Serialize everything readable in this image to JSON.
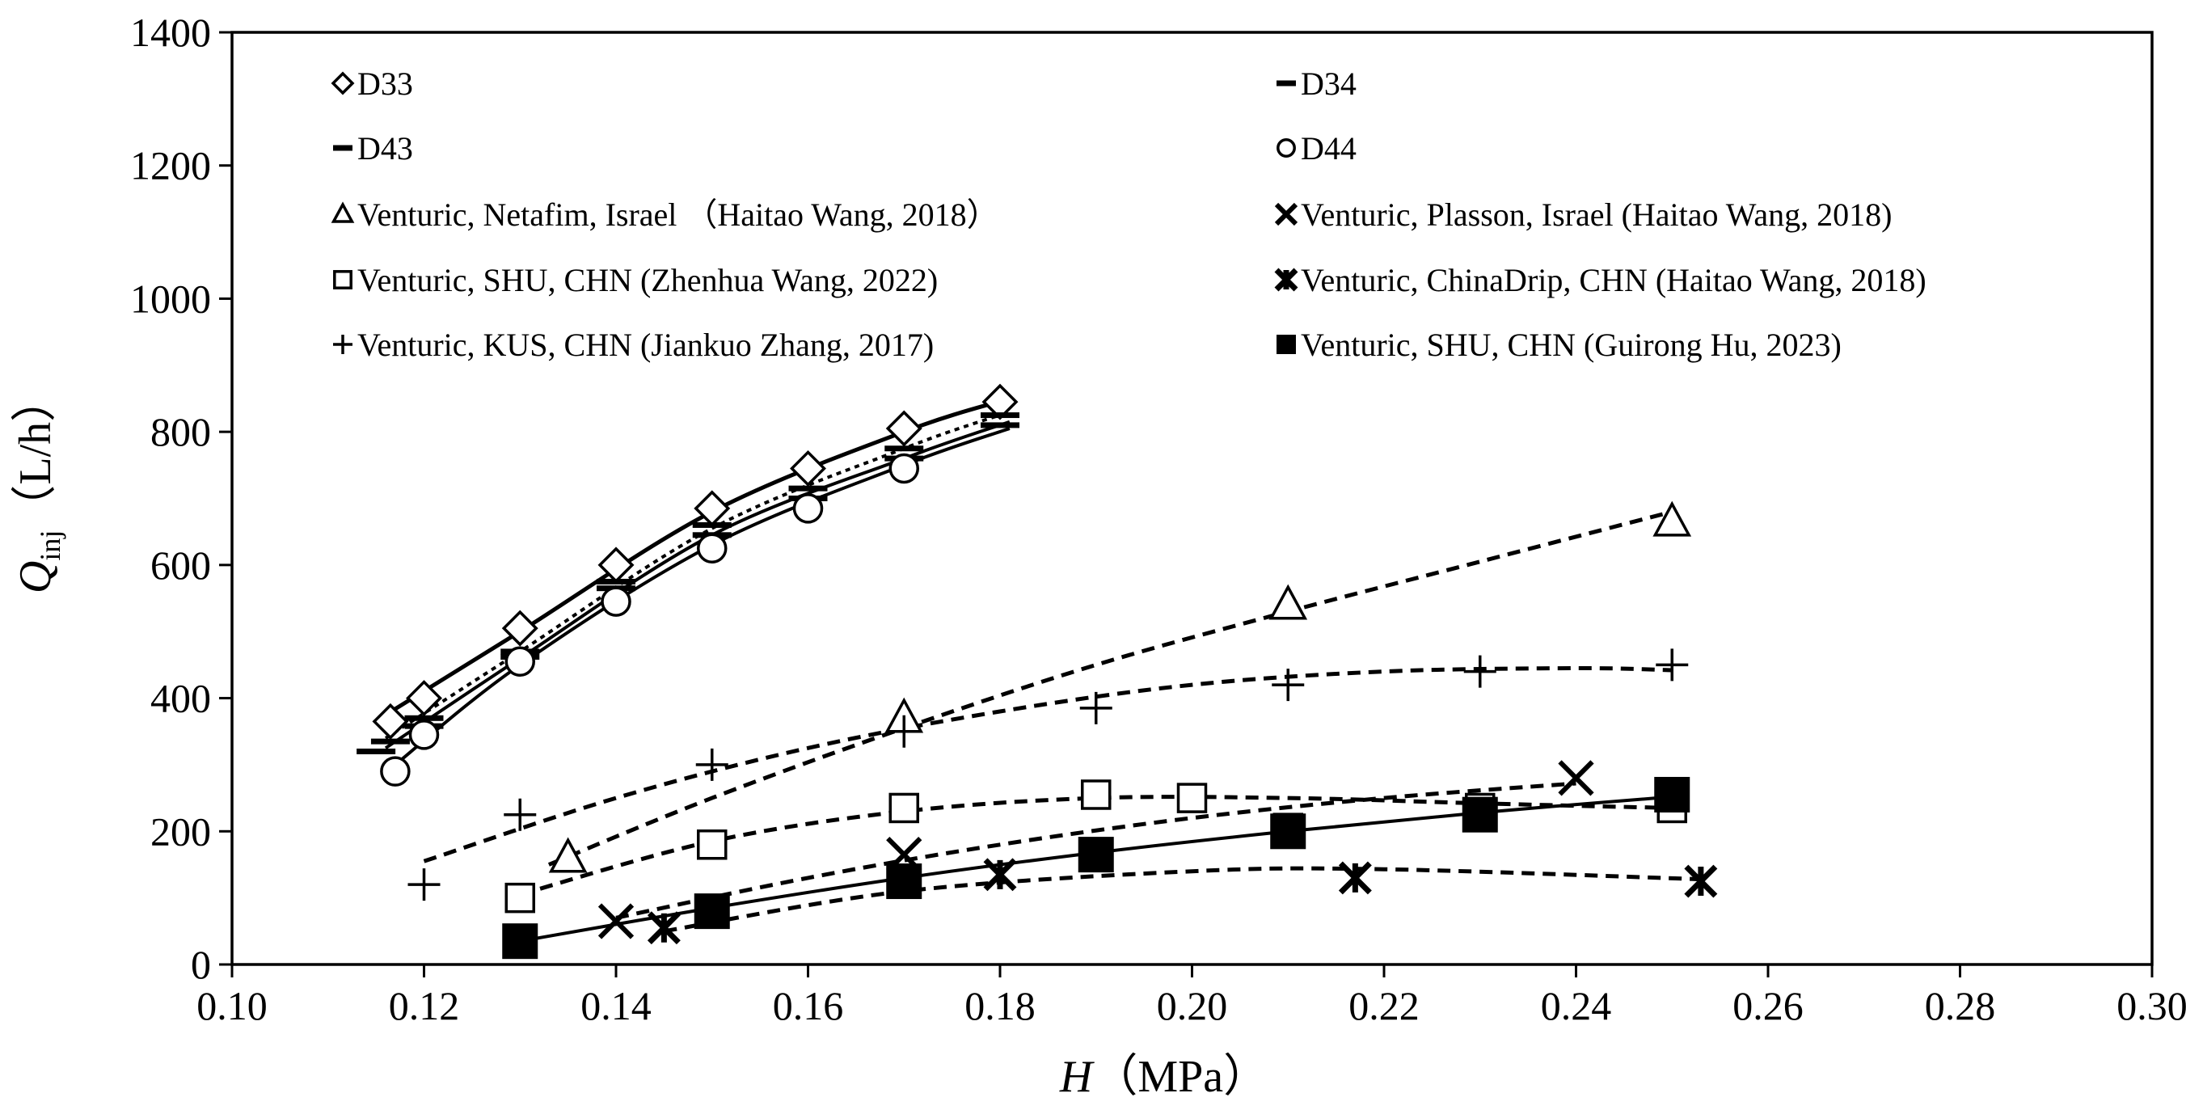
{
  "chart_data": {
    "type": "scatter",
    "title": "",
    "xlabel": "H（MPa）",
    "xlabel_parts": {
      "var": "H",
      "unit": "（MPa）"
    },
    "ylabel": "Qinj（L/h）",
    "ylabel_parts": {
      "var": "Q",
      "sub": "inj",
      "unit": "（L/h）"
    },
    "xlim": [
      0.1,
      0.3
    ],
    "ylim": [
      0,
      1400
    ],
    "xticks": [
      0.1,
      0.12,
      0.14,
      0.16,
      0.18,
      0.2,
      0.22,
      0.24,
      0.26,
      0.28,
      0.3
    ],
    "yticks": [
      0,
      200,
      400,
      600,
      800,
      1000,
      1200,
      1400
    ],
    "xtick_labels": [
      "0.10",
      "0.12",
      "0.14",
      "0.16",
      "0.18",
      "0.20",
      "0.22",
      "0.24",
      "0.26",
      "0.28",
      "0.30"
    ],
    "ytick_labels": [
      "0",
      "200",
      "400",
      "600",
      "800",
      "1000",
      "1200",
      "1400"
    ],
    "grid": false,
    "legend_position": "top, two columns",
    "series": [
      {
        "name": "D33",
        "marker": "diamond",
        "line": "solid",
        "x": [
          0.1165,
          0.12,
          0.13,
          0.14,
          0.15,
          0.16,
          0.17,
          0.18
        ],
        "y": [
          365,
          400,
          505,
          600,
          685,
          745,
          805,
          845
        ]
      },
      {
        "name": "D34",
        "marker": "dash",
        "line": "dotted",
        "x": [
          0.1165,
          0.12,
          0.13,
          0.14,
          0.15,
          0.16,
          0.17,
          0.18
        ],
        "y": [
          335,
          370,
          470,
          575,
          660,
          715,
          775,
          825
        ]
      },
      {
        "name": "D43",
        "marker": "dash",
        "line": "solid",
        "x": [
          0.115,
          0.12,
          0.13,
          0.14,
          0.15,
          0.16,
          0.17,
          0.18
        ],
        "y": [
          320,
          358,
          462,
          565,
          645,
          700,
          760,
          810
        ]
      },
      {
        "name": "D44",
        "marker": "circle",
        "line": "solid",
        "x": [
          0.117,
          0.12,
          0.13,
          0.14,
          0.15,
          0.16,
          0.17
        ],
        "y": [
          290,
          345,
          455,
          545,
          625,
          685,
          745
        ]
      },
      {
        "name": "Venturic, Netafim, Israel （Haitao Wang, 2018）",
        "marker": "triangle",
        "line": "dashed",
        "x": [
          0.135,
          0.17,
          0.21,
          0.25
        ],
        "y": [
          160,
          370,
          540,
          665
        ]
      },
      {
        "name": "Venturic, Plasson, Israel (Haitao Wang, 2018)",
        "marker": "x",
        "line": "dashed",
        "x": [
          0.14,
          0.17,
          0.24
        ],
        "y": [
          65,
          165,
          280
        ]
      },
      {
        "name": "Venturic, SHU, CHN (Zhenhua Wang, 2022)",
        "marker": "square-open",
        "line": "dashed",
        "x": [
          0.13,
          0.15,
          0.17,
          0.19,
          0.2,
          0.21,
          0.23,
          0.25
        ],
        "y": [
          100,
          180,
          235,
          255,
          250,
          205,
          235,
          235
        ]
      },
      {
        "name": "Venturic, ChinaDrip, CHN (Haitao Wang, 2018)",
        "marker": "asterisk",
        "line": "dashed",
        "x": [
          0.145,
          0.18,
          0.217,
          0.253
        ],
        "y": [
          55,
          135,
          130,
          125
        ]
      },
      {
        "name": "Venturic, KUS, CHN (Jiankuo Zhang, 2017)",
        "marker": "plus",
        "line": "dashed",
        "x": [
          0.12,
          0.13,
          0.15,
          0.17,
          0.19,
          0.21,
          0.23,
          0.25
        ],
        "y": [
          120,
          225,
          300,
          350,
          385,
          420,
          440,
          450
        ]
      },
      {
        "name": "Venturic, SHU, CHN (Guirong Hu, 2023)",
        "marker": "square-filled",
        "line": "solid",
        "x": [
          0.13,
          0.15,
          0.17,
          0.19,
          0.21,
          0.23,
          0.25
        ],
        "y": [
          35,
          80,
          125,
          165,
          200,
          225,
          255
        ]
      }
    ],
    "fit_curves": [
      {
        "series": "D33",
        "style": "solid",
        "width": 5,
        "x": [
          0.116,
          0.13,
          0.15,
          0.17,
          0.181
        ],
        "y": [
          375,
          500,
          680,
          800,
          850
        ]
      },
      {
        "series": "D34",
        "style": "dotted",
        "width": 4,
        "x": [
          0.116,
          0.13,
          0.15,
          0.17,
          0.181
        ],
        "y": [
          340,
          470,
          655,
          775,
          830
        ]
      },
      {
        "series": "D43",
        "style": "solid",
        "width": 4,
        "x": [
          0.116,
          0.13,
          0.15,
          0.17,
          0.181
        ],
        "y": [
          325,
          460,
          645,
          760,
          815
        ]
      },
      {
        "series": "D44",
        "style": "solid",
        "width": 4,
        "x": [
          0.117,
          0.13,
          0.15,
          0.17,
          0.181
        ],
        "y": [
          300,
          450,
          630,
          750,
          805
        ]
      },
      {
        "series": "Netafim",
        "style": "dashed",
        "width": 5,
        "x": [
          0.133,
          0.15,
          0.17,
          0.19,
          0.21,
          0.23,
          0.25
        ],
        "y": [
          150,
          250,
          355,
          450,
          530,
          605,
          680
        ]
      },
      {
        "series": "KUS",
        "style": "dashed",
        "width": 5,
        "x": [
          0.12,
          0.14,
          0.16,
          0.18,
          0.2,
          0.22,
          0.24,
          0.25
        ],
        "y": [
          155,
          250,
          325,
          380,
          420,
          440,
          445,
          442
        ]
      },
      {
        "series": "SHU Zhenhua",
        "style": "dashed",
        "width": 5,
        "x": [
          0.13,
          0.15,
          0.17,
          0.19,
          0.21,
          0.23,
          0.25
        ],
        "y": [
          105,
          185,
          230,
          250,
          250,
          242,
          235
        ]
      },
      {
        "series": "Plasson",
        "style": "dashed",
        "width": 5,
        "x": [
          0.14,
          0.16,
          0.18,
          0.2,
          0.22,
          0.24
        ],
        "y": [
          70,
          130,
          180,
          220,
          250,
          272
        ]
      },
      {
        "series": "ChinaDrip",
        "style": "dashed",
        "width": 5,
        "x": [
          0.145,
          0.17,
          0.2,
          0.22,
          0.253
        ],
        "y": [
          50,
          110,
          140,
          143,
          128
        ]
      },
      {
        "series": "SHU Guirong",
        "style": "solid",
        "width": 4,
        "x": [
          0.13,
          0.15,
          0.17,
          0.19,
          0.21,
          0.23,
          0.25
        ],
        "y": [
          35,
          85,
          130,
          168,
          200,
          228,
          252
        ]
      }
    ]
  }
}
